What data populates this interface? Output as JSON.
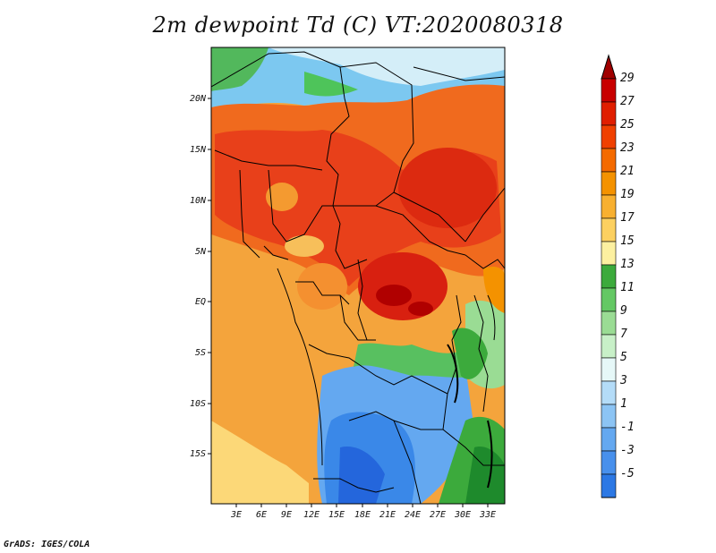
{
  "title": "2m dewpoint Td (C) VT:2020080318",
  "credit": "GrADS: IGES/COLA",
  "map": {
    "lat_ticks": [
      "20N",
      "15N",
      "10N",
      "5N",
      "EQ",
      "5S",
      "10S",
      "15S"
    ],
    "lon_ticks": [
      "3E",
      "6E",
      "9E",
      "12E",
      "15E",
      "18E",
      "21E",
      "24E",
      "27E",
      "30E",
      "33E"
    ]
  },
  "colorbar": {
    "labels": [
      "29",
      "27",
      "25",
      "23",
      "21",
      "19",
      "17",
      "15",
      "13",
      "11",
      "9",
      "7",
      "5",
      "3",
      "1",
      "-1",
      "-3",
      "-5"
    ],
    "colors": [
      "#a00000",
      "#c80000",
      "#e01e00",
      "#f04000",
      "#f46a00",
      "#f49200",
      "#f8b030",
      "#fcd060",
      "#fcf0a0",
      "#3caa3c",
      "#64c864",
      "#9adc94",
      "#c8f0c8",
      "#e6f8f8",
      "#b4dcf8",
      "#8cc4f4",
      "#64a8f0",
      "#4890ec",
      "#2c78e4",
      "#1e62d8"
    ]
  }
}
